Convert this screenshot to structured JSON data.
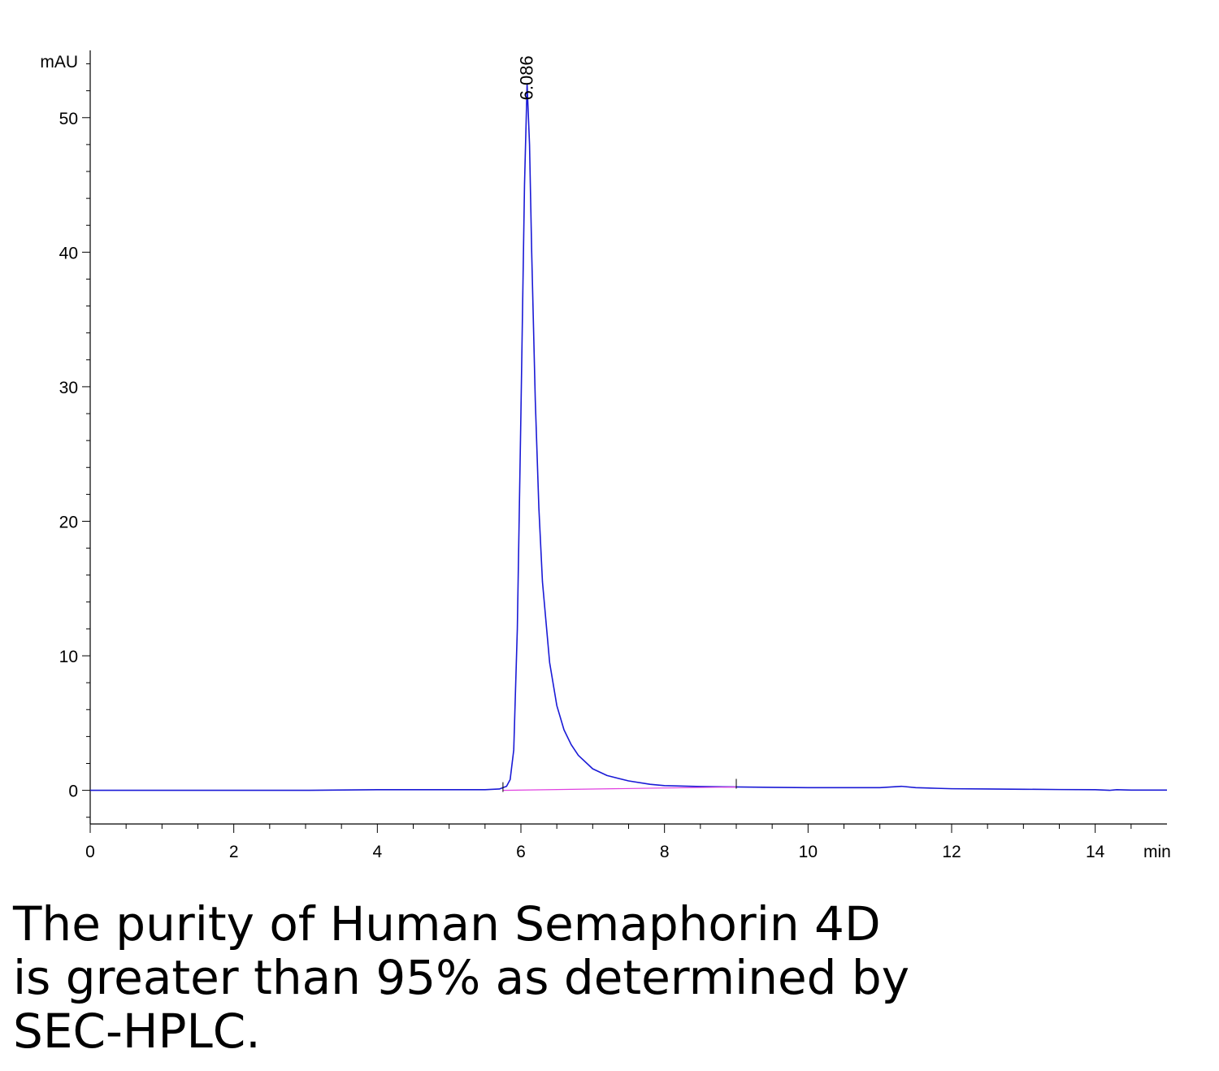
{
  "caption": "The purity of Human Semaphorin 4D is greater than 95% as determined by SEC-HPLC.",
  "chart_data": {
    "type": "line",
    "title": "",
    "xlabel": "min",
    "ylabel": "mAU",
    "xlim": [
      0,
      15
    ],
    "ylim": [
      -2.5,
      55
    ],
    "x_ticks": [
      0,
      2,
      4,
      6,
      8,
      10,
      12,
      14
    ],
    "y_ticks": [
      0,
      10,
      20,
      30,
      40,
      50
    ],
    "x_tick_labels": [
      "0",
      "2",
      "4",
      "6",
      "8",
      "10",
      "12",
      "14"
    ],
    "y_tick_labels": [
      "0",
      "10",
      "20",
      "30",
      "40",
      "50"
    ],
    "grid": false,
    "series": [
      {
        "color": "#1a1ad6",
        "x": [
          0,
          1,
          2,
          3,
          4,
          4.5,
          5,
          5.5,
          5.7,
          5.8,
          5.85,
          5.9,
          5.95,
          6.0,
          6.05,
          6.086,
          6.12,
          6.15,
          6.2,
          6.25,
          6.3,
          6.4,
          6.5,
          6.6,
          6.7,
          6.8,
          7.0,
          7.2,
          7.5,
          7.8,
          8.0,
          8.5,
          9.0,
          9.5,
          10.0,
          10.5,
          11.0,
          11.3,
          11.5,
          11.8,
          12.0,
          12.5,
          13.0,
          13.5,
          14.0,
          14.2,
          14.3,
          14.5,
          15.0
        ],
        "y": [
          0.0,
          0.0,
          0.0,
          0.0,
          0.05,
          0.05,
          0.05,
          0.05,
          0.1,
          0.3,
          0.8,
          3.0,
          12.0,
          28.0,
          45.0,
          52.5,
          48.0,
          40.0,
          29.0,
          21.0,
          15.5,
          9.5,
          6.3,
          4.5,
          3.4,
          2.6,
          1.6,
          1.1,
          0.7,
          0.45,
          0.35,
          0.28,
          0.25,
          0.22,
          0.2,
          0.2,
          0.2,
          0.3,
          0.2,
          0.15,
          0.12,
          0.1,
          0.08,
          0.06,
          0.05,
          0.0,
          0.05,
          0.02,
          0.02
        ]
      },
      {
        "color": "#e040e0",
        "x": [
          5.75,
          9.0
        ],
        "y": [
          0.0,
          0.25
        ]
      }
    ],
    "annotations": [
      {
        "text": "6.086",
        "x": 6.086,
        "y": 52.5
      }
    ]
  }
}
